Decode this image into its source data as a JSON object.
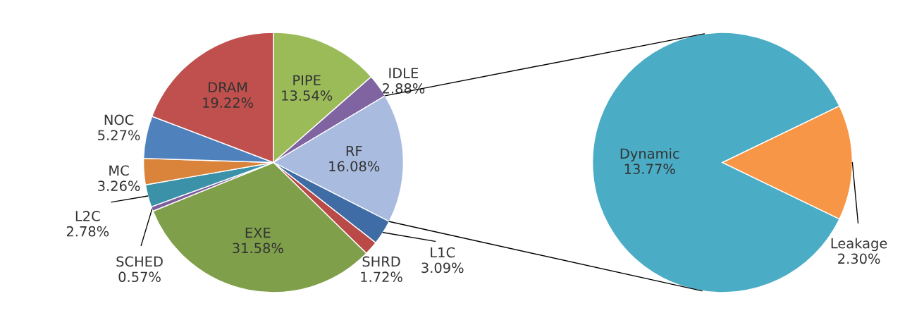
{
  "chart_data": [
    {
      "type": "pie",
      "categories": [
        "PIPE",
        "IDLE",
        "RF",
        "L1C",
        "SHRD",
        "EXE",
        "SCHED",
        "L2C",
        "MC",
        "NOC",
        "DRAM"
      ],
      "values": [
        13.54,
        2.88,
        16.08,
        3.09,
        1.72,
        31.58,
        0.57,
        2.78,
        3.26,
        5.27,
        19.22
      ],
      "value_labels": [
        "13.54%",
        "2.88%",
        "16.08%",
        "3.09%",
        "1.72%",
        "31.58%",
        "0.57%",
        "2.78%",
        "3.26%",
        "5.27%",
        "19.22%"
      ],
      "colors": [
        "#9bbb59",
        "#8064a2",
        "#a9bcdf",
        "#3f6ca5",
        "#b94a48",
        "#7f9f4a",
        "#7d5d9c",
        "#3a91a8",
        "#d9833b",
        "#4f81bd",
        "#c0504d"
      ]
    },
    {
      "type": "pie",
      "categories": [
        "Dynamic",
        "Leakage"
      ],
      "values": [
        13.77,
        2.3
      ],
      "value_labels": [
        "13.77%",
        "2.30%"
      ],
      "colors": [
        "#4bacc6",
        "#f79646"
      ]
    }
  ]
}
